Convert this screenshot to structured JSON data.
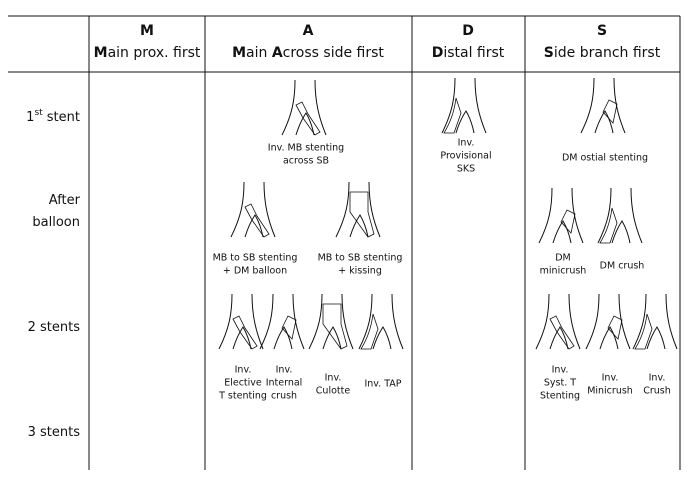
{
  "columns": [
    {
      "letter": "M",
      "subtitle": [
        {
          "text": "M",
          "bold": true
        },
        {
          "text": "ain prox. first"
        }
      ]
    },
    {
      "letter": "A",
      "subtitle": [
        {
          "text": "M",
          "bold": true
        },
        {
          "text": "ain "
        },
        {
          "text": "A",
          "bold": true
        },
        {
          "text": "cross side first"
        }
      ]
    },
    {
      "letter": "D",
      "subtitle": [
        {
          "text": "D",
          "bold": true
        },
        {
          "text": "istal first"
        }
      ]
    },
    {
      "letter": "S",
      "subtitle": [
        {
          "text": "S",
          "bold": true
        },
        {
          "text": "ide branch first"
        }
      ]
    }
  ],
  "rows": [
    {
      "lines": [
        [
          {
            "text": "1"
          },
          {
            "text": "st",
            "sup": true
          },
          {
            "text": " stent"
          }
        ]
      ]
    },
    {
      "lines": [
        [
          {
            "text": "After"
          }
        ],
        [
          {
            "text": "balloon"
          }
        ]
      ]
    },
    {
      "lines": [
        [
          {
            "text": "2 stents"
          }
        ]
      ]
    },
    {
      "lines": [
        [
          {
            "text": "3 stents"
          }
        ]
      ]
    }
  ],
  "figures": [
    {
      "caption": [
        "Inv. MB stenting",
        "across SB"
      ]
    },
    {
      "caption": [
        "Inv.",
        "Provisional",
        "SKS"
      ]
    },
    {
      "caption": [
        "DM ostial stenting"
      ]
    },
    {
      "caption": [
        "MB to SB stenting",
        "+ DM balloon"
      ]
    },
    {
      "caption": [
        "MB to SB stenting",
        "+ kissing"
      ]
    },
    {
      "caption": [
        "DM",
        "minicrush"
      ]
    },
    {
      "caption": [
        "DM crush"
      ]
    },
    {
      "caption": [
        "Inv.",
        "Elective",
        "T stenting"
      ]
    },
    {
      "caption": [
        "Inv.",
        "Internal",
        "crush"
      ]
    },
    {
      "caption": [
        "Inv.",
        "Culotte"
      ]
    },
    {
      "caption": [
        "Inv. TAP"
      ]
    },
    {
      "caption": [
        "Inv.",
        "Syst. T",
        "Stenting"
      ]
    },
    {
      "caption": [
        "Inv.",
        "Minicrush"
      ]
    },
    {
      "caption": [
        "Inv.",
        "Crush"
      ]
    }
  ]
}
